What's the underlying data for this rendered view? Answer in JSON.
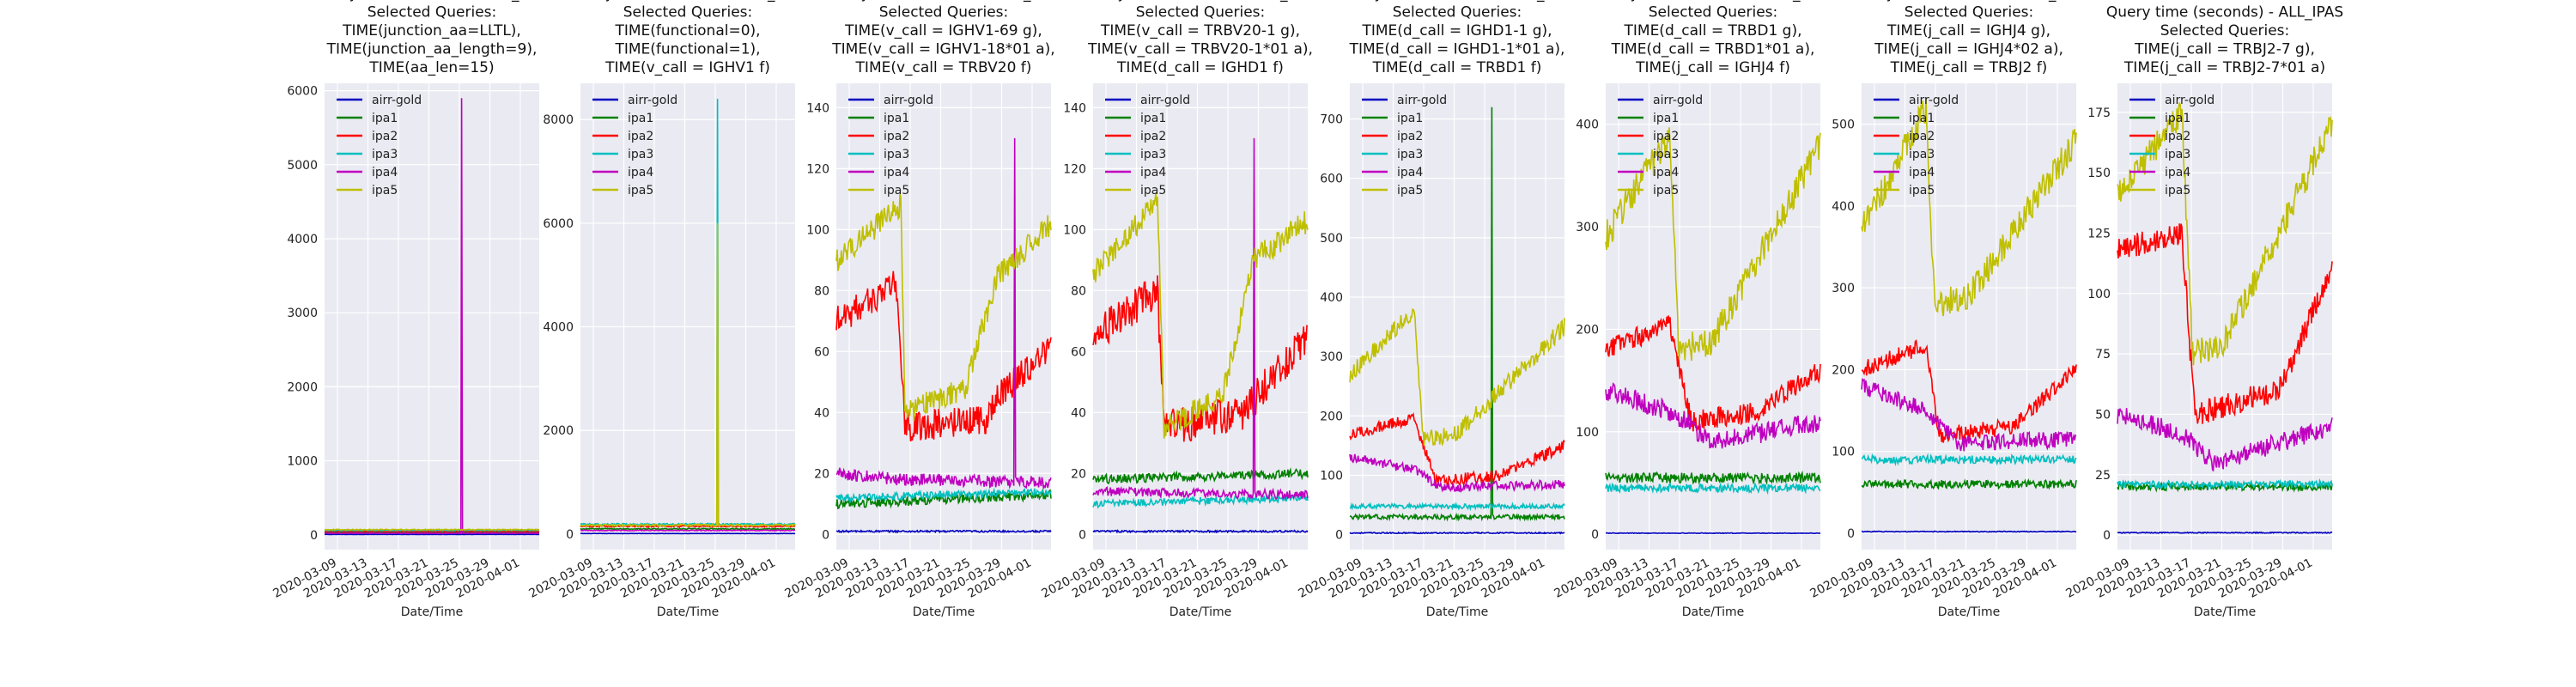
{
  "figure": {
    "title_prefix": "Query time (seconds) - ALL_IPAS",
    "xlabel": "Date/Time",
    "xticks": [
      "2020-03-09",
      "2020-03-13",
      "2020-03-17",
      "2020-03-21",
      "2020-03-25",
      "2020-03-29",
      "2020-04-01"
    ],
    "legend": [
      "airr-gold",
      "ipa1",
      "ipa2",
      "ipa3",
      "ipa4",
      "ipa5"
    ],
    "colors": {
      "airr-gold": "#0000bf",
      "ipa1": "#008000",
      "ipa2": "#ff0000",
      "ipa3": "#00bfbf",
      "ipa4": "#bf00bf",
      "ipa5": "#bfbf00"
    },
    "background": "#eaeaf2"
  },
  "chart_data": [
    {
      "type": "line",
      "title": [
        "Query time (seconds) - ALL_IPAS",
        "Selected Queries:",
        "TIME(junction_aa=LLTL),",
        "TIME(junction_aa_length=9),",
        "TIME(aa_len=15)"
      ],
      "xlabel": "Date/Time",
      "ylim": [
        -200,
        6100
      ],
      "yticks": [
        0,
        1000,
        2000,
        3000,
        4000,
        5000,
        6000
      ],
      "series": [
        {
          "name": "airr-gold",
          "level": 5,
          "noise": 1
        },
        {
          "name": "ipa1",
          "level": 30,
          "noise": 4
        },
        {
          "name": "ipa2",
          "level": 45,
          "noise": 5
        },
        {
          "name": "ipa3",
          "level": 60,
          "noise": 6
        },
        {
          "name": "ipa4",
          "level": 20,
          "noise": 4,
          "spikes": [
            [
              0.64,
              5900
            ]
          ]
        },
        {
          "name": "ipa5",
          "level": 70,
          "noise": 6
        }
      ]
    },
    {
      "type": "line",
      "title": [
        "Query time (seconds) - ALL_IPAS",
        "Selected Queries:",
        "TIME(functional=0),",
        "TIME(functional=1),",
        "TIME(v_call = IGHV1 f)"
      ],
      "xlabel": "Date/Time",
      "ylim": [
        -300,
        8700
      ],
      "yticks": [
        0,
        2000,
        4000,
        6000,
        8000
      ],
      "series": [
        {
          "name": "airr-gold",
          "level": 10,
          "noise": 2
        },
        {
          "name": "ipa1",
          "level": 100,
          "noise": 10
        },
        {
          "name": "ipa2",
          "level": 150,
          "noise": 15
        },
        {
          "name": "ipa3",
          "level": 190,
          "noise": 15,
          "spikes": [
            [
              0.64,
              8400
            ]
          ]
        },
        {
          "name": "ipa4",
          "level": 70,
          "noise": 8
        },
        {
          "name": "ipa5",
          "level": 170,
          "noise": 20,
          "spikes": [
            [
              0.64,
              6000
            ]
          ]
        }
      ]
    },
    {
      "type": "line",
      "title": [
        "Query time (seconds) - ALL_IPAS",
        "Selected Queries:",
        "TIME(v_call = IGHV1-69 g),",
        "TIME(v_call = IGHV1-18*01 a),",
        "TIME(v_call = TRBV20 f)"
      ],
      "xlabel": "Date/Time",
      "ylim": [
        -5,
        148
      ],
      "yticks": [
        0,
        20,
        40,
        60,
        80,
        100,
        120,
        140
      ],
      "series": [
        {
          "name": "airr-gold",
          "level": 1,
          "noise": 0.3
        },
        {
          "name": "ipa1",
          "segments": [
            [
              0,
              10
            ],
            [
              1,
              13
            ]
          ],
          "noise": 1.5
        },
        {
          "name": "ipa2",
          "segments": [
            [
              0,
              70
            ],
            [
              0.28,
              82
            ],
            [
              0.32,
              35
            ],
            [
              0.7,
              38
            ],
            [
              0.75,
              45
            ],
            [
              1,
              62
            ]
          ],
          "noise": 5
        },
        {
          "name": "ipa3",
          "segments": [
            [
              0,
              12
            ],
            [
              1,
              14
            ]
          ],
          "noise": 1.2
        },
        {
          "name": "ipa4",
          "segments": [
            [
              0,
              20
            ],
            [
              0.3,
              18
            ],
            [
              1,
              17
            ]
          ],
          "noise": 2,
          "spikes": [
            [
              0.83,
              130
            ]
          ]
        },
        {
          "name": "ipa5",
          "segments": [
            [
              0,
              90
            ],
            [
              0.3,
              108
            ],
            [
              0.32,
              40
            ],
            [
              0.6,
              48
            ],
            [
              0.75,
              85
            ],
            [
              1,
              102
            ]
          ],
          "noise": 4
        }
      ]
    },
    {
      "type": "line",
      "title": [
        "Query time (seconds) - ALL_IPAS",
        "Selected Queries:",
        "TIME(v_call = TRBV20-1 g),",
        "TIME(v_call = TRBV20-1*01  a),",
        "TIME(d_call = IGHD1 f)"
      ],
      "xlabel": "Date/Time",
      "ylim": [
        -5,
        148
      ],
      "yticks": [
        0,
        20,
        40,
        60,
        80,
        100,
        120,
        140
      ],
      "series": [
        {
          "name": "airr-gold",
          "level": 1,
          "noise": 0.3
        },
        {
          "name": "ipa1",
          "segments": [
            [
              0,
              18
            ],
            [
              1,
              20
            ]
          ],
          "noise": 1.5
        },
        {
          "name": "ipa2",
          "segments": [
            [
              0,
              65
            ],
            [
              0.3,
              80
            ],
            [
              0.33,
              35
            ],
            [
              0.7,
              40
            ],
            [
              1,
              65
            ]
          ],
          "noise": 6
        },
        {
          "name": "ipa3",
          "segments": [
            [
              0,
              10
            ],
            [
              1,
              12
            ]
          ],
          "noise": 1.2
        },
        {
          "name": "ipa4",
          "segments": [
            [
              0,
              14
            ],
            [
              1,
              13
            ]
          ],
          "noise": 1.5,
          "spikes": [
            [
              0.75,
              130
            ]
          ]
        },
        {
          "name": "ipa5",
          "segments": [
            [
              0,
              85
            ],
            [
              0.3,
              110
            ],
            [
              0.33,
              35
            ],
            [
              0.6,
              45
            ],
            [
              0.75,
              90
            ],
            [
              1,
              103
            ]
          ],
          "noise": 4
        }
      ]
    },
    {
      "type": "line",
      "title": [
        "Query time (seconds) - ALL_IPAS",
        "Selected Queries:",
        "TIME(d_call = IGHD1-1 g),",
        "TIME(d_call = IGHD1-1*01 a),",
        "TIME(d_call = TRBD1 f)"
      ],
      "xlabel": "Date/Time",
      "ylim": [
        -25,
        760
      ],
      "yticks": [
        0,
        100,
        200,
        300,
        400,
        500,
        600,
        700
      ],
      "series": [
        {
          "name": "airr-gold",
          "level": 3,
          "noise": 1
        },
        {
          "name": "ipa1",
          "level": 30,
          "noise": 4,
          "spikes": [
            [
              0.66,
              720
            ]
          ]
        },
        {
          "name": "ipa2",
          "segments": [
            [
              0,
              170
            ],
            [
              0.3,
              195
            ],
            [
              0.4,
              90
            ],
            [
              0.7,
              100
            ],
            [
              1,
              150
            ]
          ],
          "noise": 10
        },
        {
          "name": "ipa3",
          "level": 48,
          "noise": 4
        },
        {
          "name": "ipa4",
          "segments": [
            [
              0,
              130
            ],
            [
              0.3,
              110
            ],
            [
              0.42,
              80
            ],
            [
              1,
              85
            ]
          ],
          "noise": 8
        },
        {
          "name": "ipa5",
          "segments": [
            [
              0,
              270
            ],
            [
              0.3,
              380
            ],
            [
              0.34,
              160
            ],
            [
              0.5,
              170
            ],
            [
              1,
              350
            ]
          ],
          "noise": 15
        }
      ]
    },
    {
      "type": "line",
      "title": [
        "Query time (seconds) - ALL_IPAS",
        "Selected Queries:",
        "TIME(d_call = TRBD1 g),",
        "TIME(d_call = TRBD1*01 a),",
        "TIME(j_call = IGHJ4 f)"
      ],
      "xlabel": "Date/Time",
      "ylim": [
        -15,
        440
      ],
      "yticks": [
        0,
        100,
        200,
        300,
        400
      ],
      "series": [
        {
          "name": "airr-gold",
          "level": 1,
          "noise": 0.3
        },
        {
          "name": "ipa1",
          "level": 55,
          "noise": 5
        },
        {
          "name": "ipa2",
          "segments": [
            [
              0,
              180
            ],
            [
              0.3,
              205
            ],
            [
              0.4,
              110
            ],
            [
              0.7,
              120
            ],
            [
              1,
              160
            ]
          ],
          "noise": 10
        },
        {
          "name": "ipa3",
          "level": 45,
          "noise": 4
        },
        {
          "name": "ipa4",
          "segments": [
            [
              0,
              140
            ],
            [
              0.3,
              120
            ],
            [
              0.5,
              90
            ],
            [
              1,
              110
            ]
          ],
          "noise": 10
        },
        {
          "name": "ipa5",
          "segments": [
            [
              0,
              290
            ],
            [
              0.3,
              390
            ],
            [
              0.34,
              180
            ],
            [
              0.5,
              190
            ],
            [
              1,
              380
            ]
          ],
          "noise": 15
        }
      ]
    },
    {
      "type": "line",
      "title": [
        "Query time (seconds) - ALL_IPAS",
        "Selected Queries:",
        "TIME(j_call = IGHJ4 g),",
        "TIME(j_call = IGHJ4*02 a),",
        "TIME(j_call = TRBJ2 f)"
      ],
      "xlabel": "Date/Time",
      "ylim": [
        -20,
        550
      ],
      "yticks": [
        0,
        100,
        200,
        300,
        400,
        500
      ],
      "series": [
        {
          "name": "airr-gold",
          "level": 2,
          "noise": 0.5
        },
        {
          "name": "ipa1",
          "level": 60,
          "noise": 5
        },
        {
          "name": "ipa2",
          "segments": [
            [
              0,
              200
            ],
            [
              0.3,
              230
            ],
            [
              0.36,
              120
            ],
            [
              0.7,
              130
            ],
            [
              1,
              200
            ]
          ],
          "noise": 10
        },
        {
          "name": "ipa3",
          "level": 90,
          "noise": 5
        },
        {
          "name": "ipa4",
          "segments": [
            [
              0,
              180
            ],
            [
              0.3,
              150
            ],
            [
              0.45,
              110
            ],
            [
              1,
              115
            ]
          ],
          "noise": 10
        },
        {
          "name": "ipa5",
          "segments": [
            [
              0,
              370
            ],
            [
              0.3,
              520
            ],
            [
              0.34,
              280
            ],
            [
              0.5,
              290
            ],
            [
              1,
              480
            ]
          ],
          "noise": 18
        }
      ]
    },
    {
      "type": "line",
      "title": [
        "Query time (seconds) - ALL_IPAS",
        "Selected Queries:",
        "TIME(j_call = TRBJ2-7 g),",
        "TIME(j_call = TRBJ2-7*01 a)"
      ],
      "xlabel": "Date/Time",
      "ylim": [
        -6,
        187
      ],
      "yticks": [
        0,
        25,
        50,
        75,
        100,
        125,
        150,
        175
      ],
      "series": [
        {
          "name": "airr-gold",
          "level": 1,
          "noise": 0.2
        },
        {
          "name": "ipa1",
          "level": 20,
          "noise": 1.5
        },
        {
          "name": "ipa2",
          "segments": [
            [
              0,
              118
            ],
            [
              0.3,
              125
            ],
            [
              0.36,
              50
            ],
            [
              0.75,
              60
            ],
            [
              1,
              110
            ]
          ],
          "noise": 5
        },
        {
          "name": "ipa3",
          "level": 21,
          "noise": 1.5
        },
        {
          "name": "ipa4",
          "segments": [
            [
              0,
              50
            ],
            [
              0.3,
              42
            ],
            [
              0.45,
              30
            ],
            [
              1,
              45
            ]
          ],
          "noise": 4
        },
        {
          "name": "ipa5",
          "segments": [
            [
              0,
              140
            ],
            [
              0.3,
              175
            ],
            [
              0.35,
              75
            ],
            [
              0.5,
              80
            ],
            [
              1,
              170
            ]
          ],
          "noise": 6
        }
      ]
    }
  ]
}
